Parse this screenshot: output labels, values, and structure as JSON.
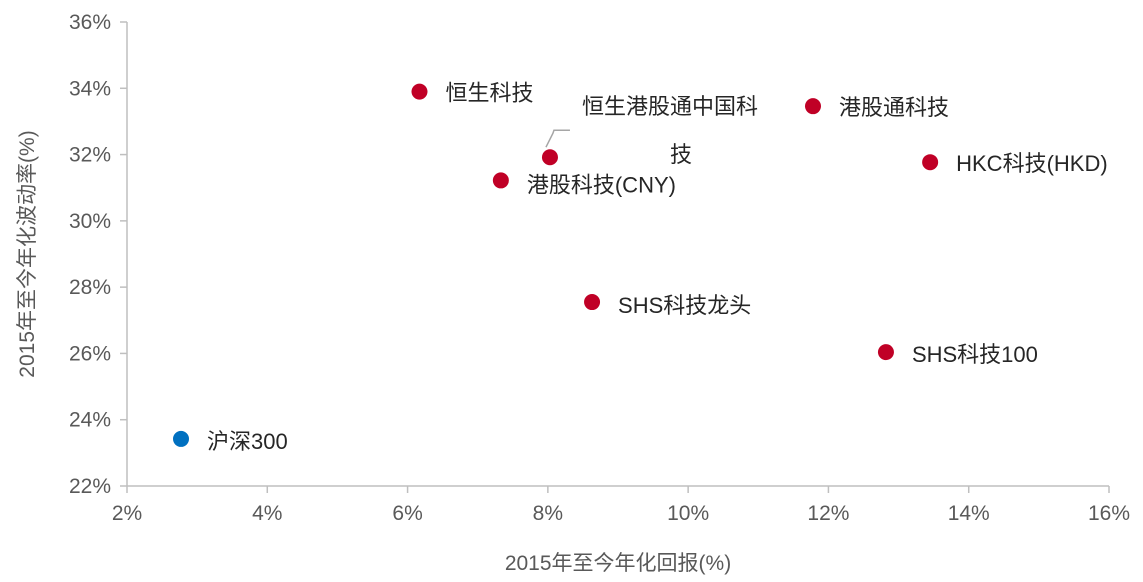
{
  "chart_data": {
    "type": "scatter",
    "title": "",
    "xlabel": "2015年至今年化回报(%)",
    "ylabel": "2015年至今年化波动率(%)",
    "xlim": [
      0.02,
      0.16
    ],
    "ylim": [
      0.22,
      0.36
    ],
    "x_ticks": [
      0.02,
      0.04,
      0.06,
      0.08,
      0.1,
      0.12,
      0.14,
      0.16
    ],
    "x_tick_labels": [
      "2%",
      "4%",
      "6%",
      "8%",
      "10%",
      "12%",
      "14%",
      "16%"
    ],
    "y_ticks": [
      0.22,
      0.24,
      0.26,
      0.28,
      0.3,
      0.32,
      0.34,
      0.36
    ],
    "y_tick_labels": [
      "22%",
      "24%",
      "26%",
      "28%",
      "30%",
      "32%",
      "34%",
      "36%"
    ],
    "grid": false,
    "colors": {
      "highlight": "#c00026",
      "benchmark": "#0070c0",
      "axis": "#bfbfbf",
      "text": "#595959"
    },
    "points": [
      {
        "label": "恒生科技",
        "x": 0.0617,
        "y": 0.339,
        "color": "#c00026"
      },
      {
        "label": "恒生港股通中国科技",
        "label_lines": [
          "恒生港股通中国科",
          "技"
        ],
        "x": 0.0803,
        "y": 0.3192,
        "color": "#c00026"
      },
      {
        "label": "港股科技(CNY)",
        "x": 0.0733,
        "y": 0.3122,
        "color": "#c00026"
      },
      {
        "label": "港股通科技",
        "x": 0.1178,
        "y": 0.3346,
        "color": "#c00026"
      },
      {
        "label": "HKC科技(HKD)",
        "x": 0.1345,
        "y": 0.3177,
        "color": "#c00026"
      },
      {
        "label": "SHS科技龙头",
        "x": 0.0863,
        "y": 0.2755,
        "color": "#c00026"
      },
      {
        "label": "SHS科技100",
        "x": 0.1282,
        "y": 0.2604,
        "color": "#c00026"
      },
      {
        "label": "沪深300",
        "x": 0.0277,
        "y": 0.2342,
        "color": "#0070c0"
      }
    ]
  }
}
